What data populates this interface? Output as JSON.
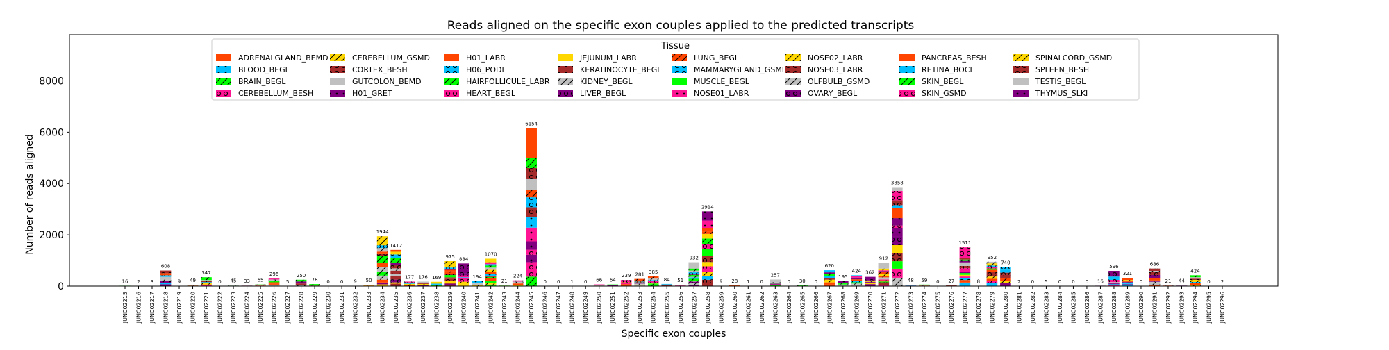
{
  "chart_data": {
    "type": "bar",
    "title": "Reads aligned on the specific exon couples applied to the predicted transcripts",
    "xlabel": "Specific exon couples",
    "ylabel": "Number of reads aligned",
    "ylim": [
      0,
      9800
    ],
    "yticks": [
      0,
      2000,
      4000,
      6000,
      8000
    ],
    "grid": false,
    "stacked": true,
    "legend": {
      "title": "Tissue",
      "placement": "top-center",
      "columns": 8,
      "entries": [
        {
          "name": "ADRENALGLAND_BEMD",
          "color": "#ff4500",
          "hatch": "none"
        },
        {
          "name": "BLOOD_BEGL",
          "color": "#00bfff",
          "hatch": "dot"
        },
        {
          "name": "BRAIN_BEGL",
          "color": "#00ff00",
          "hatch": "slash"
        },
        {
          "name": "CEREBELLUM_BESH",
          "color": "#ff1493",
          "hatch": "circle"
        },
        {
          "name": "CEREBELLUM_GSMD",
          "color": "#ffd700",
          "hatch": "slash"
        },
        {
          "name": "CORTEX_BESH",
          "color": "#a52a2a",
          "hatch": "circle"
        },
        {
          "name": "GUTCOLON_BEMD",
          "color": "#c0c0c0",
          "hatch": "none"
        },
        {
          "name": "H01_GRET",
          "color": "#800080",
          "hatch": "dot"
        },
        {
          "name": "H01_LABR",
          "color": "#ff4500",
          "hatch": "none"
        },
        {
          "name": "H06_PODL",
          "color": "#00bfff",
          "hatch": "circle"
        },
        {
          "name": "HAIRFOLLICULE_LABR",
          "color": "#00ff00",
          "hatch": "slash"
        },
        {
          "name": "HEART_BEGL",
          "color": "#ff1493",
          "hatch": "circle"
        },
        {
          "name": "JEJUNUM_LABR",
          "color": "#ffd700",
          "hatch": "none"
        },
        {
          "name": "KERATINOCYTE_BEGL",
          "color": "#a52a2a",
          "hatch": "dot"
        },
        {
          "name": "KIDNEY_BEGL",
          "color": "#c0c0c0",
          "hatch": "slash"
        },
        {
          "name": "LIVER_BEGL",
          "color": "#800080",
          "hatch": "circle"
        },
        {
          "name": "LUNG_BEGL",
          "color": "#ff4500",
          "hatch": "slash"
        },
        {
          "name": "MAMMARYGLAND_GSMD",
          "color": "#00bfff",
          "hatch": "circle"
        },
        {
          "name": "MUSCLE_BEGL",
          "color": "#00ff00",
          "hatch": "none"
        },
        {
          "name": "NOSE01_LABR",
          "color": "#ff1493",
          "hatch": "dot"
        },
        {
          "name": "NOSE02_LABR",
          "color": "#ffd700",
          "hatch": "slash"
        },
        {
          "name": "NOSE03_LABR",
          "color": "#a52a2a",
          "hatch": "circle"
        },
        {
          "name": "OLFBULB_GSMD",
          "color": "#c0c0c0",
          "hatch": "slash"
        },
        {
          "name": "OVARY_BEGL",
          "color": "#800080",
          "hatch": "circle"
        },
        {
          "name": "PANCREAS_BESH",
          "color": "#ff4500",
          "hatch": "none"
        },
        {
          "name": "RETINA_BOCL",
          "color": "#00bfff",
          "hatch": "dot"
        },
        {
          "name": "SKIN_BEGL",
          "color": "#00ff00",
          "hatch": "slash"
        },
        {
          "name": "SKIN_GSMD",
          "color": "#ff1493",
          "hatch": "circle"
        },
        {
          "name": "SPINALCORD_GSMD",
          "color": "#ffd700",
          "hatch": "slash"
        },
        {
          "name": "SPLEEN_BESH",
          "color": "#a52a2a",
          "hatch": "circle"
        },
        {
          "name": "TESTIS_BEGL",
          "color": "#c0c0c0",
          "hatch": "none"
        },
        {
          "name": "THYMUS_SLKI",
          "color": "#800080",
          "hatch": "dot"
        }
      ]
    },
    "categories": [
      "JUNC02215",
      "JUNC02216",
      "JUNC02217",
      "JUNC02218",
      "JUNC02219",
      "JUNC02220",
      "JUNC02221",
      "JUNC02222",
      "JUNC02223",
      "JUNC02224",
      "JUNC02225",
      "JUNC02226",
      "JUNC02227",
      "JUNC02228",
      "JUNC02229",
      "JUNC02230",
      "JUNC02231",
      "JUNC02232",
      "JUNC02233",
      "JUNC02234",
      "JUNC02235",
      "JUNC02236",
      "JUNC02237",
      "JUNC02238",
      "JUNC02239",
      "JUNC02240",
      "JUNC02241",
      "JUNC02242",
      "JUNC02243",
      "JUNC02244",
      "JUNC02245",
      "JUNC02246",
      "JUNC02247",
      "JUNC02248",
      "JUNC02249",
      "JUNC02250",
      "JUNC02251",
      "JUNC02252",
      "JUNC02253",
      "JUNC02254",
      "JUNC02255",
      "JUNC02256",
      "JUNC02257",
      "JUNC02258",
      "JUNC02259",
      "JUNC02260",
      "JUNC02261",
      "JUNC02262",
      "JUNC02263",
      "JUNC02264",
      "JUNC02265",
      "JUNC02266",
      "JUNC02267",
      "JUNC02268",
      "JUNC02269",
      "JUNC02270",
      "JUNC02271",
      "JUNC02272",
      "JUNC02273",
      "JUNC02274",
      "JUNC02275",
      "JUNC02276",
      "JUNC02277",
      "JUNC02278",
      "JUNC02279",
      "JUNC02280",
      "JUNC02281",
      "JUNC02282",
      "JUNC02283",
      "JUNC02284",
      "JUNC02285",
      "JUNC02286",
      "JUNC02287",
      "JUNC02288",
      "JUNC02289",
      "JUNC02290",
      "JUNC02291",
      "JUNC02292",
      "JUNC02293",
      "JUNC02294",
      "JUNC02295",
      "JUNC02296"
    ],
    "totals": [
      16,
      2,
      3,
      608,
      9,
      49,
      347,
      0,
      45,
      33,
      65,
      296,
      5,
      250,
      78,
      0,
      0,
      9,
      50,
      1944,
      1412,
      177,
      176,
      169,
      975,
      884,
      194,
      1070,
      21,
      224,
      6154,
      0,
      0,
      1,
      0,
      66,
      64,
      239,
      281,
      385,
      84,
      51,
      932,
      2914,
      9,
      28,
      1,
      0,
      257,
      0,
      30,
      0,
      620,
      195,
      424,
      362,
      912,
      3858,
      48,
      59,
      0,
      27,
      1511,
      8,
      952,
      740,
      2,
      0,
      5,
      0,
      0,
      0,
      16,
      596,
      321,
      0,
      686,
      21,
      44,
      424,
      0,
      2
    ]
  }
}
